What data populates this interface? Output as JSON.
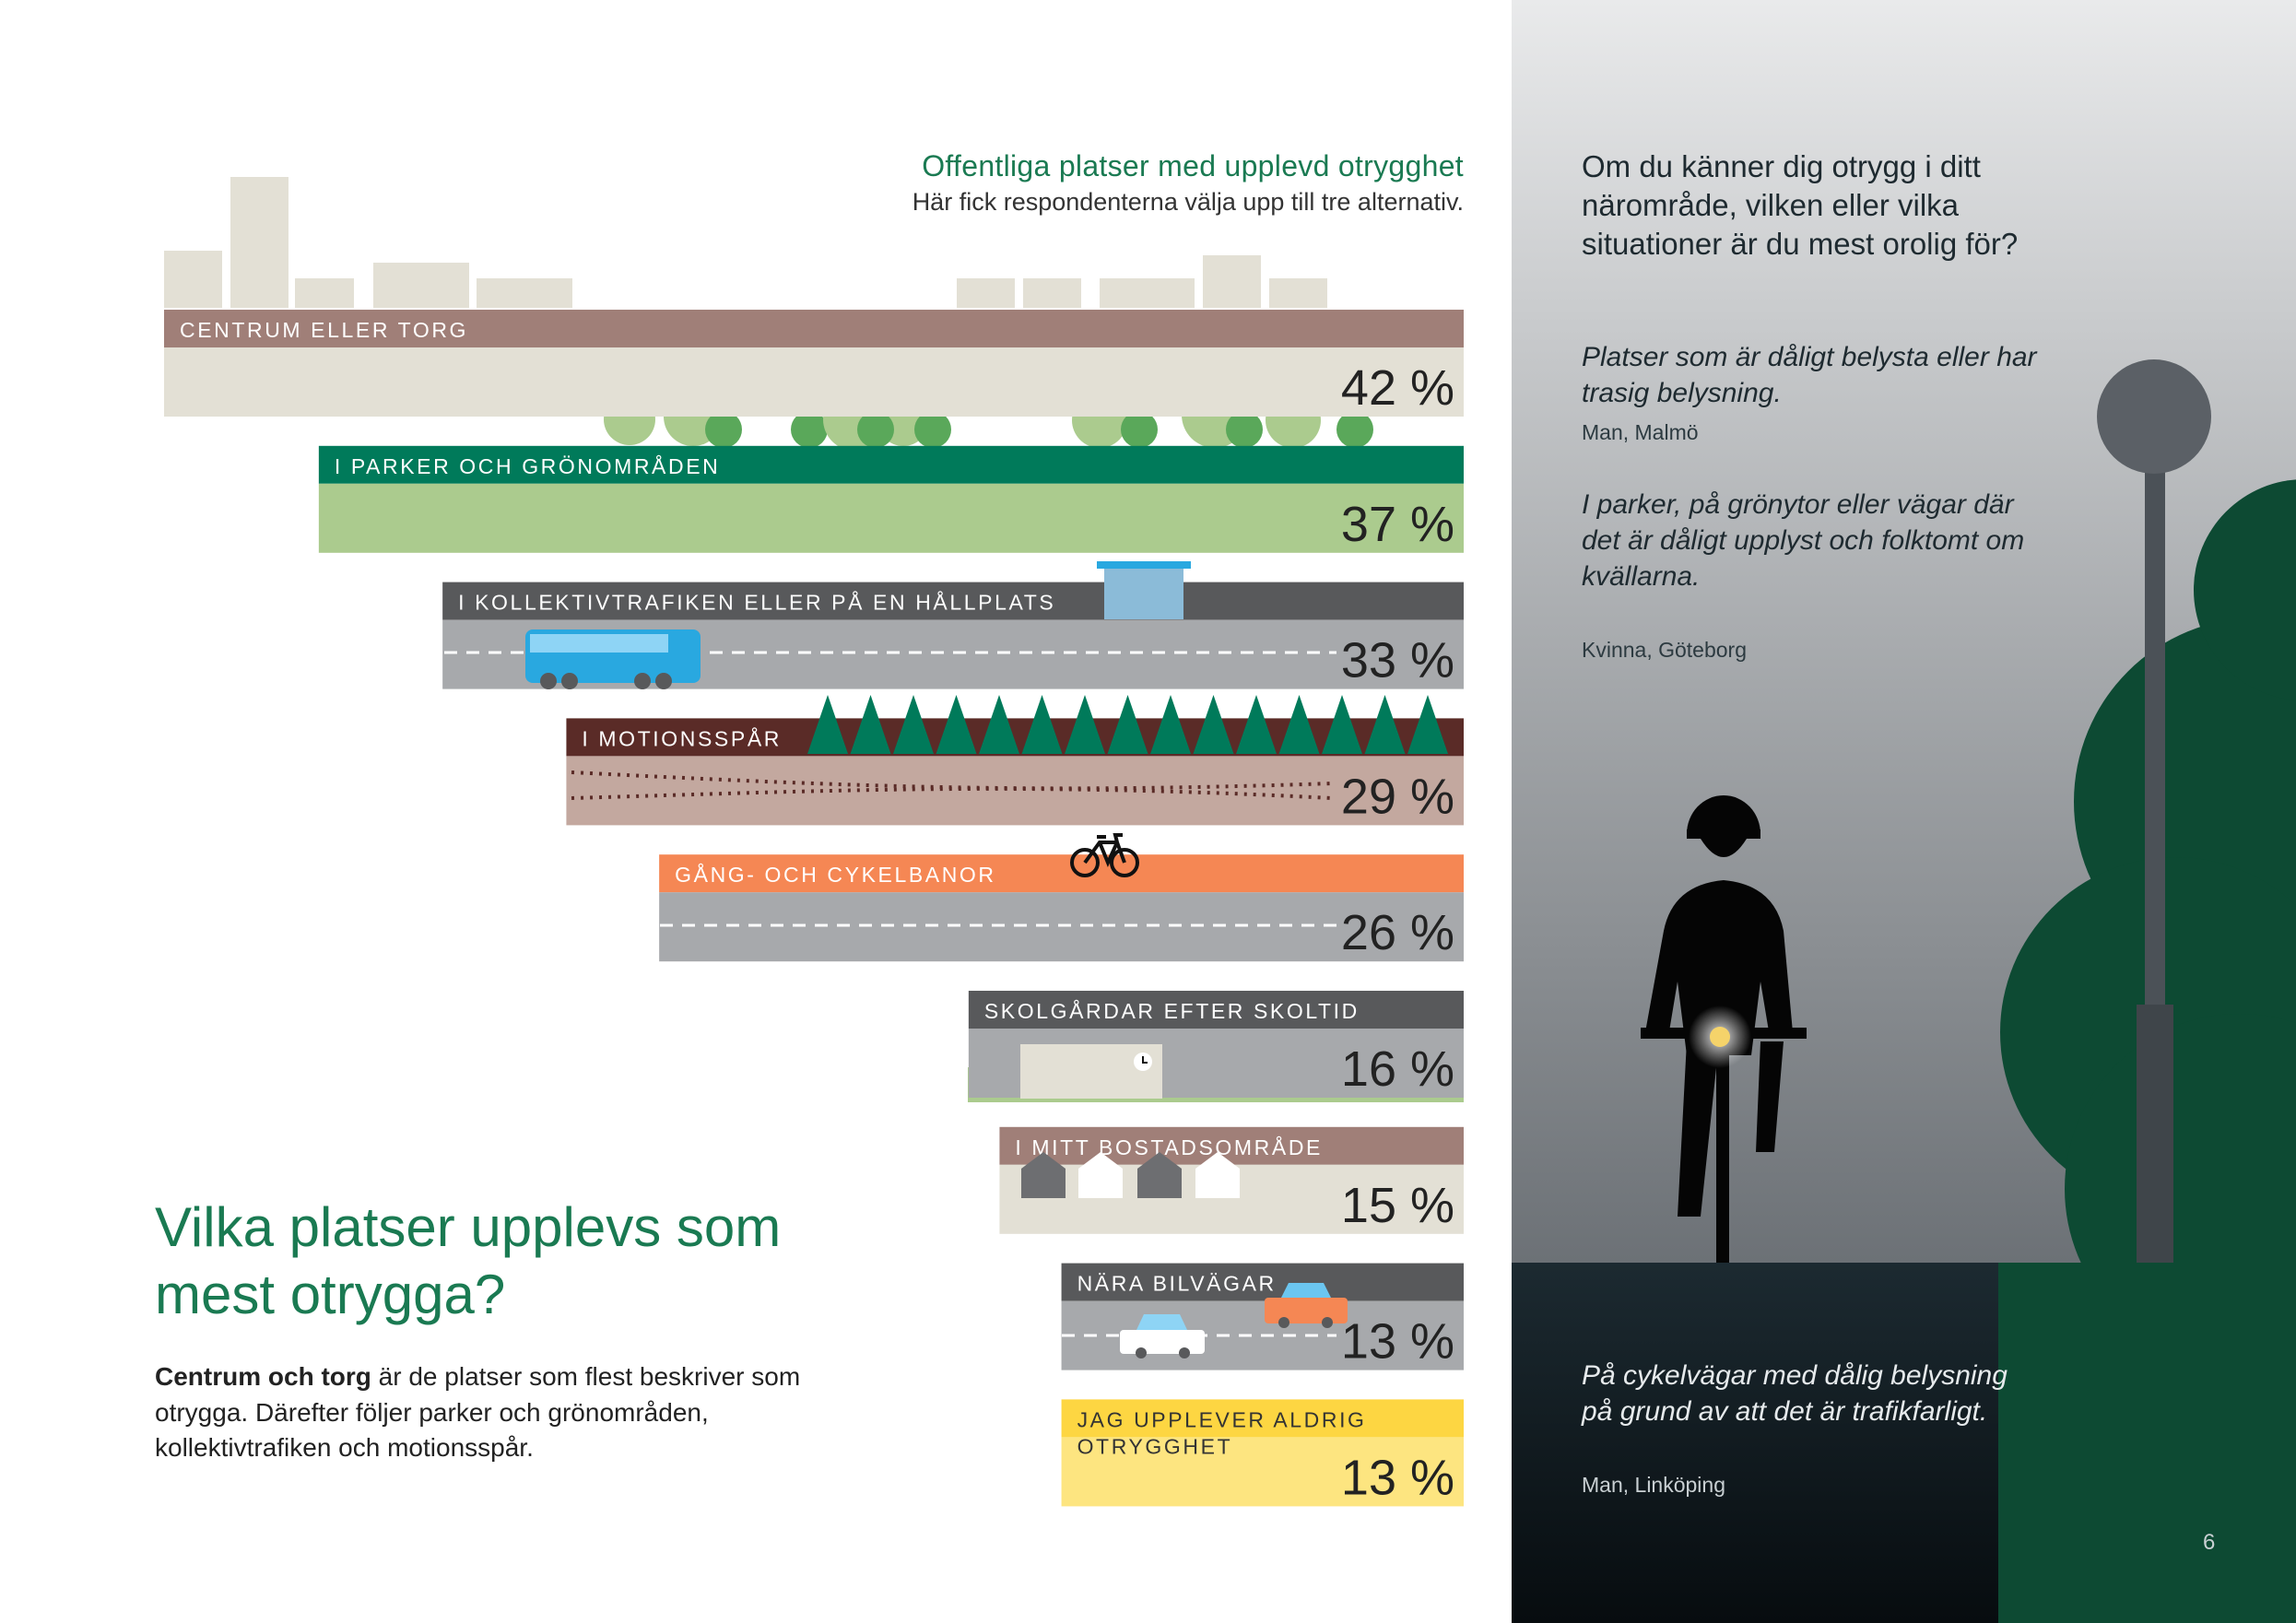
{
  "chart_title": "Offentliga platser med upplevd otrygghet",
  "chart_subtitle": "Här fick respondenterna välja upp till tre alternativ.",
  "chart_data": {
    "type": "bar",
    "orientation": "horizontal",
    "title": "Offentliga platser med upplevd otrygghet",
    "subtitle": "Här fick respondenterna välja upp till tre alternativ.",
    "categories": [
      "CENTRUM ELLER TORG",
      "I PARKER OCH GRÖNOMRÅDEN",
      "I KOLLEKTIVTRAFIKEN ELLER PÅ EN HÅLLPLATS",
      "I MOTIONSSPÅR",
      "GÅNG- OCH CYKELBANOR",
      "SKOLGÅRDAR EFTER SKOLTID",
      "I MITT BOSTADSOMRÅDE",
      "NÄRA BILVÄGAR",
      "JAG UPPLEVER ALDRIG OTRYGGHET"
    ],
    "values": [
      42,
      37,
      33,
      29,
      26,
      16,
      15,
      13,
      13
    ],
    "value_labels": [
      "42 %",
      "37 %",
      "33 %",
      "29 %",
      "26 %",
      "16 %",
      "15 %",
      "13 %",
      "13 %"
    ],
    "unit": "%",
    "xlim": [
      0,
      42
    ],
    "colors": {
      "header": [
        "#a07f78",
        "#007a5a",
        "#58595b",
        "#5a2b27",
        "#f58754",
        "#58595b",
        "#a07f78",
        "#58595b",
        "#fdd642"
      ],
      "body": [
        "#e3e0d5",
        "#abcb8e",
        "#a7a9ac",
        "#c3a89f",
        "#a7a9ac",
        "#a7a9ac",
        "#e3e0d5",
        "#a7a9ac",
        "#fde580"
      ]
    }
  },
  "headline": "Vilka platser upplevs som mest otrygga?",
  "body": {
    "bold": "Centrum och torg",
    "rest": " är de platser som flest beskriver som otrygga. Därefter följer parker och grönområden, kollektivtrafiken och motionsspår."
  },
  "question": "Om du känner dig otrygg i ditt närområde, vilken eller vilka situationer är du mest orolig för?",
  "quotes": [
    {
      "text": "Platser som är dåligt belysta eller har trasig belysning.",
      "author": "Man, Malmö"
    },
    {
      "text": "I parker, på grönytor eller vägar där det är dåligt upplyst och folktomt om kvällarna.",
      "author": "Kvinna, Göteborg"
    },
    {
      "text": "På cykelvägar med dålig belysning på grund av att det är trafikfarligt.",
      "author": "Man, Linköping"
    }
  ],
  "page_number": "6",
  "colors": {
    "accent": "#1a7a52",
    "dark_ground": "#0f1a1f",
    "tree": "#0d4a33",
    "lamp": "#4b5157"
  }
}
